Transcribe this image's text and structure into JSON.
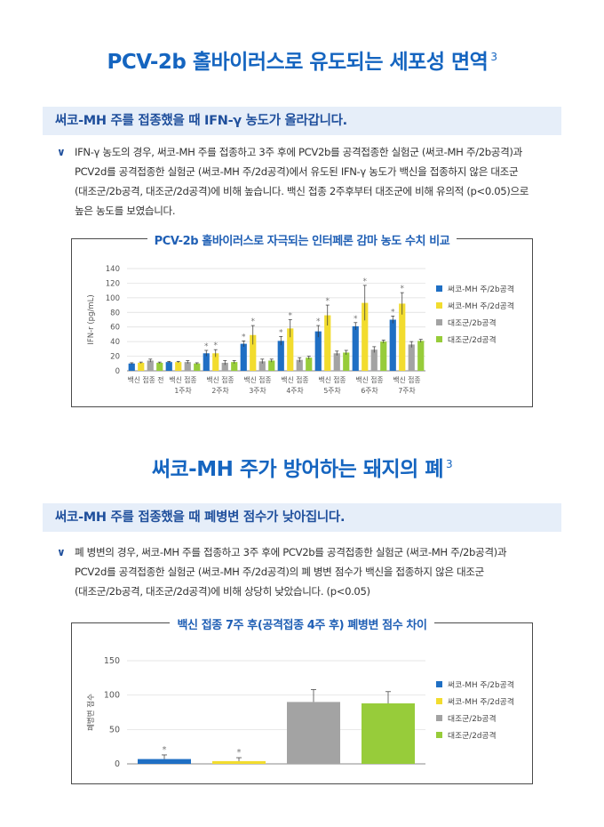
{
  "section1": {
    "title": "PCV-2b 홀바이러스로 유도되는 세포성 면역",
    "ref": "3",
    "subtitle": "써코-MH 주를 접종했을 때 IFN-γ 농도가 올라갑니다.",
    "paragraph_mark": "∨",
    "paragraph_lines": [
      "IFN-γ 농도의 경우, 써코-MH 주를 접종하고 3주 후에 PCV2b를 공격접종한 실험군 (써코-MH 주/2b공격)과",
      "PCV2d를 공격접종한 실험군 (써코-MH 주/2d공격)에서 유도된 IFN-γ 농도가 백신을 접종하지 않은 대조군",
      "(대조군/2b공격, 대조군/2d공격)에 비해 높습니다. 백신 접종 2주후부터 대조군에 비해 유의적 (p<0.05)으로",
      "높은 농도를 보였습니다."
    ]
  },
  "section2": {
    "title": "써코-MH 주가 방어하는 돼지의 폐",
    "ref": "3",
    "subtitle": "써코-MH 주를 접종했을 때 폐병변 점수가 낮아집니다.",
    "paragraph_mark": "∨",
    "paragraph_lines": [
      "폐 병변의 경우, 써코-MH 주를 접종하고 3주 후에 PCV2b를 공격접종한 실험군 (써코-MH 주/2b공격)과",
      "PCV2d를 공격접종한 실험군 (써코-MH 주/2d공격)의 폐 병변 점수가 백신을 접종하지 않은 대조군",
      "(대조군/2b공격, 대조군/2d공격)에 비해 상당히 낮았습니다. (p<0.05)"
    ]
  },
  "colors": {
    "blue": "#1f6fc4",
    "yellow": "#f2dc2e",
    "gray": "#a3a3a3",
    "green": "#97cc3a",
    "title_blue": "#1565c0"
  },
  "chart_data": [
    {
      "type": "bar",
      "title": "PCV-2b 홀바이러스로 자극되는 인터페론 감마 농도 수치 비교",
      "ylabel": "IFN-r (pg/mL)",
      "ylim": [
        0,
        140
      ],
      "yticks": [
        0,
        20,
        40,
        60,
        80,
        100,
        120,
        140
      ],
      "categories": [
        [
          "백신 접종 전",
          ""
        ],
        [
          "백신 접종",
          "1주차"
        ],
        [
          "백신 접종",
          "2주차"
        ],
        [
          "백신 접종",
          "3주차"
        ],
        [
          "백신 접종",
          "4주차"
        ],
        [
          "백신 접종",
          "5주차"
        ],
        [
          "백신 접종",
          "6주차"
        ],
        [
          "백신 접종",
          "7주차"
        ]
      ],
      "series": [
        {
          "name": "써코-MH 주/2b공격",
          "color": "#1f6fc4",
          "values": [
            10,
            12,
            24,
            37,
            41,
            54,
            61,
            70
          ],
          "errors": [
            1,
            1,
            4,
            4,
            6,
            8,
            5,
            5
          ],
          "significant": [
            false,
            false,
            true,
            true,
            true,
            true,
            true,
            true
          ]
        },
        {
          "name": "써코-MH 주/2d공격",
          "color": "#f2dc2e",
          "values": [
            11,
            12,
            24,
            49,
            58,
            76,
            93,
            92
          ],
          "errors": [
            1,
            1,
            5,
            13,
            12,
            14,
            24,
            15
          ],
          "significant": [
            false,
            false,
            true,
            true,
            true,
            true,
            true,
            true
          ]
        },
        {
          "name": "대조군/2b공격",
          "color": "#a3a3a3",
          "values": [
            14,
            12,
            11,
            13,
            15,
            24,
            29,
            36
          ],
          "errors": [
            2,
            2,
            3,
            3,
            3,
            3,
            4,
            4
          ],
          "significant": [
            false,
            false,
            false,
            false,
            false,
            false,
            false,
            false
          ]
        },
        {
          "name": "대조군/2d공격",
          "color": "#97cc3a",
          "values": [
            11,
            10,
            12,
            14,
            18,
            25,
            40,
            41
          ],
          "errors": [
            1,
            1,
            2,
            2,
            2,
            3,
            2,
            2
          ],
          "significant": [
            false,
            false,
            false,
            false,
            false,
            false,
            false,
            false
          ]
        }
      ],
      "significance_mark": "*",
      "legend": "right"
    },
    {
      "type": "bar",
      "title": "백신 접종 7주 후(공격접종 4주 후) 폐병변 점수 차이",
      "ylabel": "폐병변 점수",
      "ylim": [
        0,
        150
      ],
      "yticks": [
        0,
        50,
        100,
        150
      ],
      "series": [
        {
          "name": "써코-MH 주/2b공격",
          "color": "#1f6fc4",
          "value": 7,
          "error": 6,
          "significant": true
        },
        {
          "name": "써코-MH 주/2d공격",
          "color": "#f2dc2e",
          "value": 4,
          "error": 5,
          "significant": true
        },
        {
          "name": "대조군/2b공격",
          "color": "#a3a3a3",
          "value": 90,
          "error": 18,
          "significant": false
        },
        {
          "name": "대조군/2d공격",
          "color": "#97cc3a",
          "value": 88,
          "error": 17,
          "significant": false
        }
      ],
      "significance_mark": "*",
      "legend": "right"
    }
  ]
}
